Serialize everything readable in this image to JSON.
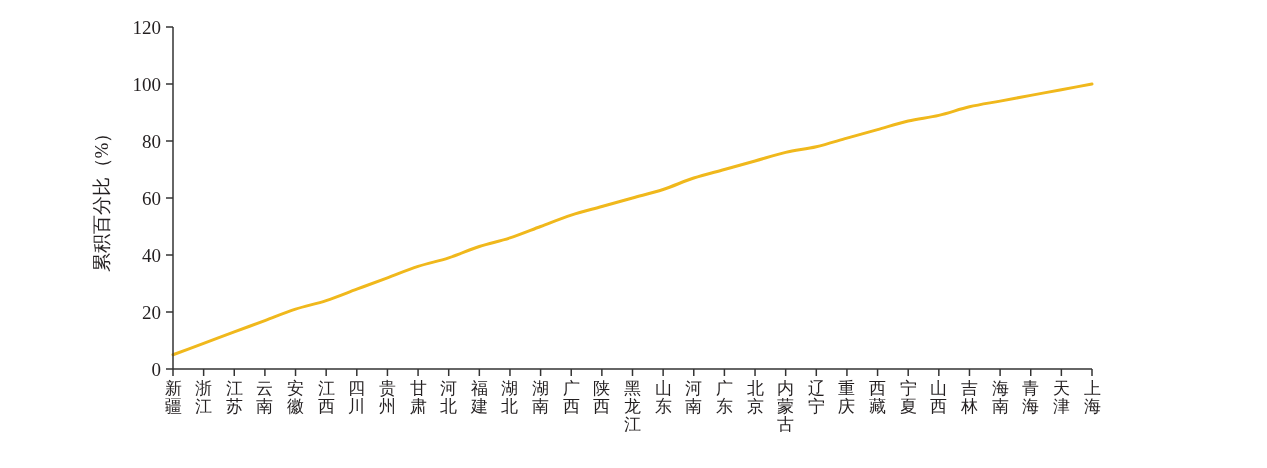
{
  "chart_data": {
    "type": "line",
    "ylabel": "累积百分比（%）",
    "categories": [
      "新疆",
      "浙江",
      "江苏",
      "云南",
      "安徽",
      "江西",
      "四川",
      "贵州",
      "甘肃",
      "河北",
      "福建",
      "湖北",
      "湖南",
      "广西",
      "陕西",
      "黑龙江",
      "山东",
      "河南",
      "广东",
      "北京",
      "内蒙古",
      "辽宁",
      "重庆",
      "西藏",
      "宁夏",
      "山西",
      "吉林",
      "海南",
      "青海",
      "天津",
      "上海"
    ],
    "series": [
      {
        "color": "#f0b81c",
        "values": [
          5,
          9,
          13,
          17,
          21,
          24,
          28,
          32,
          36,
          39,
          43,
          46,
          50,
          54,
          57,
          60,
          63,
          67,
          70,
          73,
          76,
          78,
          81,
          84,
          87,
          89,
          92,
          94,
          96,
          98,
          100
        ]
      }
    ],
    "ylim": [
      0,
      120
    ],
    "yticks": [
      0,
      20,
      40,
      60,
      80,
      100,
      120
    ],
    "marker": "none",
    "line_style": "solid"
  }
}
